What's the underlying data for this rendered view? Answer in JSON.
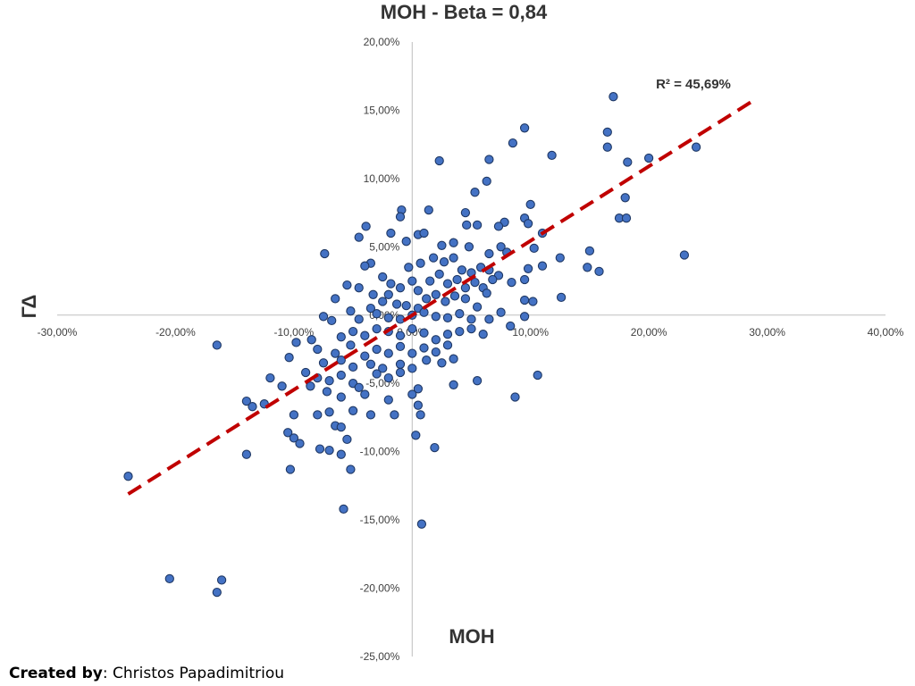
{
  "chart_data": {
    "type": "scatter",
    "title": "MOH - Beta = 0,84",
    "xlabel": "MOH",
    "ylabel": "ΓΔ",
    "xlim": [
      -30,
      40
    ],
    "ylim": [
      -25,
      20
    ],
    "x_ticks": [
      "-30,00%",
      "-20,00%",
      "-10,00%",
      "0,00%",
      "10,00%",
      "20,00%",
      "30,00%",
      "40,00%"
    ],
    "y_ticks": [
      "-25,00%",
      "-20,00%",
      "-15,00%",
      "-10,00%",
      "-5,00%",
      "0,00%",
      "5,00%",
      "10,00%",
      "15,00%",
      "20,00%"
    ],
    "annotation": "R² = 45,69%",
    "grid": false,
    "point_color": "#4472C4",
    "trendline_color": "#C00000",
    "trendline": {
      "x": [
        -24,
        29
      ],
      "y": [
        -13.1,
        15.8
      ]
    },
    "series": [
      {
        "points": [
          [
            17.0,
            16.0
          ],
          [
            9.5,
            13.7
          ],
          [
            16.5,
            13.4
          ],
          [
            8.5,
            12.6
          ],
          [
            11.8,
            11.7
          ],
          [
            2.3,
            11.3
          ],
          [
            6.5,
            11.4
          ],
          [
            18.2,
            11.2
          ],
          [
            20.0,
            11.5
          ],
          [
            24.0,
            12.3
          ],
          [
            16.5,
            12.3
          ],
          [
            6.3,
            9.8
          ],
          [
            5.3,
            9.0
          ],
          [
            10.0,
            8.1
          ],
          [
            18.0,
            8.6
          ],
          [
            7.8,
            6.8
          ],
          [
            9.5,
            7.1
          ],
          [
            9.8,
            6.7
          ],
          [
            1.4,
            7.7
          ],
          [
            -0.9,
            7.7
          ],
          [
            -1.0,
            7.2
          ],
          [
            17.5,
            7.1
          ],
          [
            18.1,
            7.1
          ],
          [
            4.5,
            7.5
          ],
          [
            4.6,
            6.6
          ],
          [
            5.5,
            6.6
          ],
          [
            7.3,
            6.5
          ],
          [
            11.0,
            6.0
          ],
          [
            -3.9,
            6.5
          ],
          [
            -1.8,
            6.0
          ],
          [
            -4.5,
            5.7
          ],
          [
            0.5,
            5.9
          ],
          [
            1.0,
            6.0
          ],
          [
            15.0,
            4.7
          ],
          [
            23.0,
            4.4
          ],
          [
            -7.4,
            4.5
          ],
          [
            -0.5,
            5.4
          ],
          [
            2.5,
            5.1
          ],
          [
            3.5,
            5.3
          ],
          [
            4.8,
            5.0
          ],
          [
            6.5,
            4.5
          ],
          [
            7.5,
            5.0
          ],
          [
            8.0,
            4.6
          ],
          [
            10.3,
            4.9
          ],
          [
            12.5,
            4.2
          ],
          [
            11.0,
            3.6
          ],
          [
            14.8,
            3.5
          ],
          [
            15.8,
            3.2
          ],
          [
            9.8,
            3.4
          ],
          [
            9.5,
            2.6
          ],
          [
            -3.5,
            3.8
          ],
          [
            -4.0,
            3.6
          ],
          [
            -2.5,
            2.8
          ],
          [
            -1.8,
            2.3
          ],
          [
            -0.3,
            3.5
          ],
          [
            0.7,
            3.8
          ],
          [
            1.8,
            4.2
          ],
          [
            2.7,
            3.9
          ],
          [
            3.5,
            4.2
          ],
          [
            4.2,
            3.3
          ],
          [
            5.0,
            3.1
          ],
          [
            5.8,
            3.5
          ],
          [
            6.5,
            3.3
          ],
          [
            7.3,
            2.9
          ],
          [
            -5.5,
            2.2
          ],
          [
            -4.5,
            2.0
          ],
          [
            -3.3,
            1.5
          ],
          [
            -2.0,
            1.5
          ],
          [
            -1.0,
            2.0
          ],
          [
            0.0,
            2.5
          ],
          [
            0.5,
            1.8
          ],
          [
            1.5,
            2.5
          ],
          [
            2.3,
            3.0
          ],
          [
            3.0,
            2.3
          ],
          [
            3.8,
            2.6
          ],
          [
            4.5,
            2.0
          ],
          [
            5.3,
            2.4
          ],
          [
            6.0,
            2.0
          ],
          [
            6.8,
            2.6
          ],
          [
            8.4,
            2.4
          ],
          [
            9.5,
            1.1
          ],
          [
            10.2,
            1.0
          ],
          [
            12.6,
            1.3
          ],
          [
            -6.5,
            1.2
          ],
          [
            -5.2,
            0.3
          ],
          [
            -3.5,
            0.5
          ],
          [
            -2.5,
            1.0
          ],
          [
            -1.3,
            0.8
          ],
          [
            -0.5,
            0.7
          ],
          [
            0.5,
            0.5
          ],
          [
            1.2,
            1.2
          ],
          [
            2.0,
            1.5
          ],
          [
            2.8,
            1.0
          ],
          [
            3.6,
            1.4
          ],
          [
            4.5,
            1.2
          ],
          [
            5.5,
            0.6
          ],
          [
            6.3,
            1.6
          ],
          [
            7.5,
            0.2
          ],
          [
            -7.5,
            -0.1
          ],
          [
            -6.8,
            -0.4
          ],
          [
            -4.5,
            -0.3
          ],
          [
            -3.0,
            0.1
          ],
          [
            -2.0,
            -0.2
          ],
          [
            -1.0,
            -0.3
          ],
          [
            0.0,
            0.0
          ],
          [
            1.0,
            0.2
          ],
          [
            2.0,
            -0.1
          ],
          [
            3.0,
            -0.2
          ],
          [
            4.0,
            0.1
          ],
          [
            5.0,
            -0.3
          ],
          [
            6.5,
            -0.3
          ],
          [
            8.3,
            -0.8
          ],
          [
            9.5,
            -0.1
          ],
          [
            -8.5,
            -1.8
          ],
          [
            -6.0,
            -1.6
          ],
          [
            -5.0,
            -1.2
          ],
          [
            -4.0,
            -1.5
          ],
          [
            -3.0,
            -1.0
          ],
          [
            -2.0,
            -1.2
          ],
          [
            -1.0,
            -1.5
          ],
          [
            0.0,
            -1.0
          ],
          [
            1.0,
            -1.3
          ],
          [
            2.0,
            -1.8
          ],
          [
            3.0,
            -1.4
          ],
          [
            4.0,
            -1.2
          ],
          [
            5.0,
            -1.0
          ],
          [
            6.0,
            -1.4
          ],
          [
            -9.8,
            -2.0
          ],
          [
            -8.0,
            -2.5
          ],
          [
            -6.5,
            -2.8
          ],
          [
            -5.2,
            -2.2
          ],
          [
            -4.0,
            -3.0
          ],
          [
            -3.0,
            -2.5
          ],
          [
            -2.0,
            -2.8
          ],
          [
            -1.0,
            -2.3
          ],
          [
            0.0,
            -2.8
          ],
          [
            1.0,
            -2.4
          ],
          [
            2.0,
            -2.7
          ],
          [
            3.0,
            -2.2
          ],
          [
            -7.5,
            -3.5
          ],
          [
            -6.0,
            -3.3
          ],
          [
            -5.0,
            -3.8
          ],
          [
            -3.5,
            -3.6
          ],
          [
            -2.5,
            -3.9
          ],
          [
            -1.0,
            -3.6
          ],
          [
            0.0,
            -3.9
          ],
          [
            1.2,
            -3.3
          ],
          [
            2.5,
            -3.5
          ],
          [
            3.5,
            -3.2
          ],
          [
            -10.4,
            -3.1
          ],
          [
            -12.0,
            -4.6
          ],
          [
            -11.0,
            -5.2
          ],
          [
            -9.0,
            -4.2
          ],
          [
            -8.0,
            -4.6
          ],
          [
            -7.0,
            -4.8
          ],
          [
            -6.0,
            -4.4
          ],
          [
            -5.0,
            -5.0
          ],
          [
            -4.5,
            -5.3
          ],
          [
            -3.0,
            -4.3
          ],
          [
            -2.0,
            -4.6
          ],
          [
            -1.0,
            -4.2
          ],
          [
            0.5,
            -5.4
          ],
          [
            -16.5,
            -2.2
          ],
          [
            -14.0,
            -6.3
          ],
          [
            -12.5,
            -6.5
          ],
          [
            -8.6,
            -5.2
          ],
          [
            -7.2,
            -5.6
          ],
          [
            -6.0,
            -6.0
          ],
          [
            -4.0,
            -5.8
          ],
          [
            -2.0,
            -6.2
          ],
          [
            0.0,
            -5.8
          ],
          [
            3.5,
            -5.1
          ],
          [
            5.5,
            -4.8
          ],
          [
            10.6,
            -4.4
          ],
          [
            8.7,
            -6.0
          ],
          [
            -10.0,
            -7.3
          ],
          [
            -8.0,
            -7.3
          ],
          [
            -7.0,
            -7.1
          ],
          [
            -5.0,
            -7.0
          ],
          [
            -3.5,
            -7.3
          ],
          [
            -1.5,
            -7.3
          ],
          [
            0.5,
            -6.6
          ],
          [
            0.7,
            -7.3
          ],
          [
            -13.5,
            -6.7
          ],
          [
            -10.5,
            -8.6
          ],
          [
            -10.0,
            -9.0
          ],
          [
            -9.5,
            -9.4
          ],
          [
            -7.8,
            -9.8
          ],
          [
            -7.0,
            -9.9
          ],
          [
            -6.5,
            -8.1
          ],
          [
            -6.0,
            -8.2
          ],
          [
            -5.5,
            -9.1
          ],
          [
            -6.0,
            -10.2
          ],
          [
            0.3,
            -8.8
          ],
          [
            1.9,
            -9.7
          ],
          [
            -14.0,
            -10.2
          ],
          [
            -10.3,
            -11.3
          ],
          [
            -5.2,
            -11.3
          ],
          [
            -24.0,
            -11.8
          ],
          [
            -5.8,
            -14.2
          ],
          [
            0.8,
            -15.3
          ],
          [
            -20.5,
            -19.3
          ],
          [
            -16.5,
            -20.3
          ],
          [
            -16.1,
            -19.4
          ]
        ]
      }
    ]
  },
  "footer": {
    "created_by_label": "Created by",
    "author": ": Christos Papadimitriou"
  }
}
